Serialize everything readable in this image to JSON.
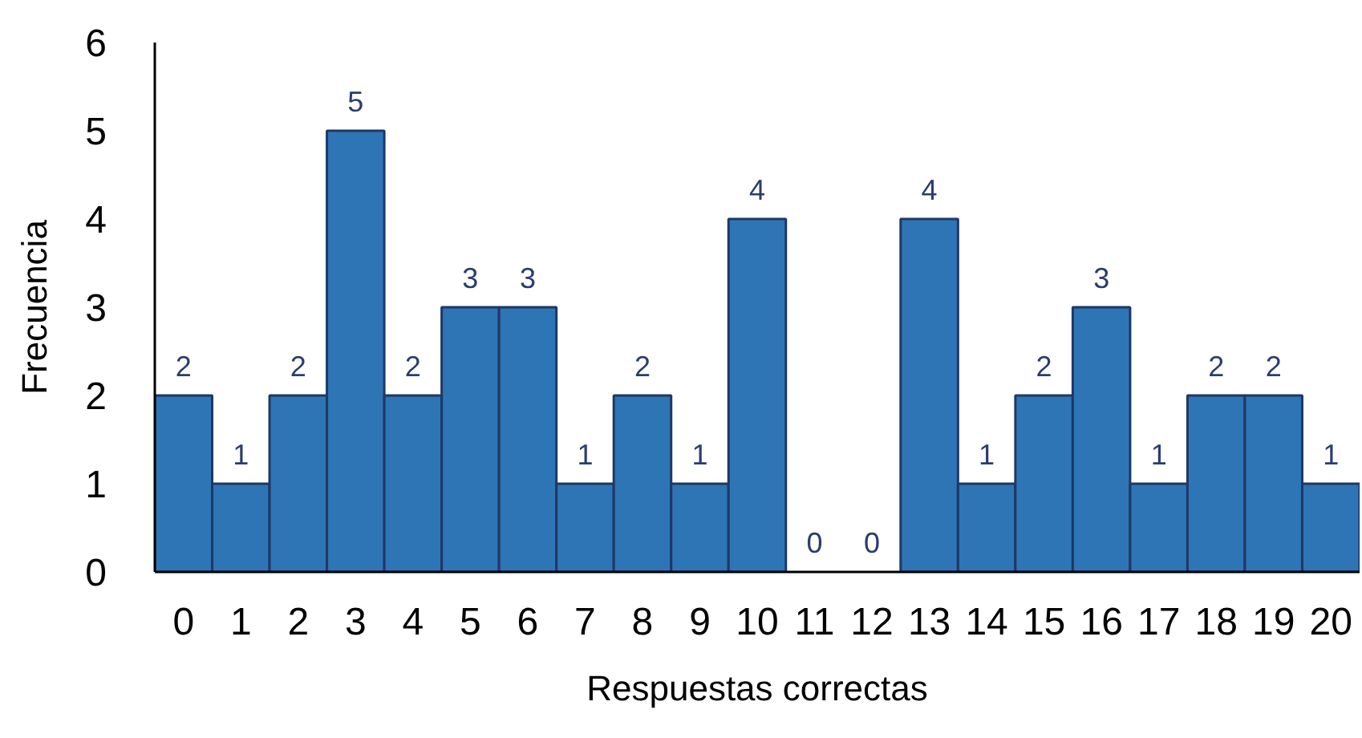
{
  "chart_data": {
    "type": "bar",
    "xlabel": "Respuestas correctas",
    "ylabel": "Frecuencia",
    "categories": [
      "0",
      "1",
      "2",
      "3",
      "4",
      "5",
      "6",
      "7",
      "8",
      "9",
      "10",
      "11",
      "12",
      "13",
      "14",
      "15",
      "16",
      "17",
      "18",
      "19",
      "20"
    ],
    "values": [
      2,
      1,
      2,
      5,
      2,
      3,
      3,
      1,
      2,
      1,
      4,
      0,
      0,
      4,
      1,
      2,
      3,
      1,
      2,
      2,
      1
    ],
    "color": "#2e75b6",
    "ylim": [
      0,
      6
    ],
    "yticks": [
      0,
      1,
      2,
      3,
      4,
      5,
      6
    ],
    "data_labels": true
  }
}
